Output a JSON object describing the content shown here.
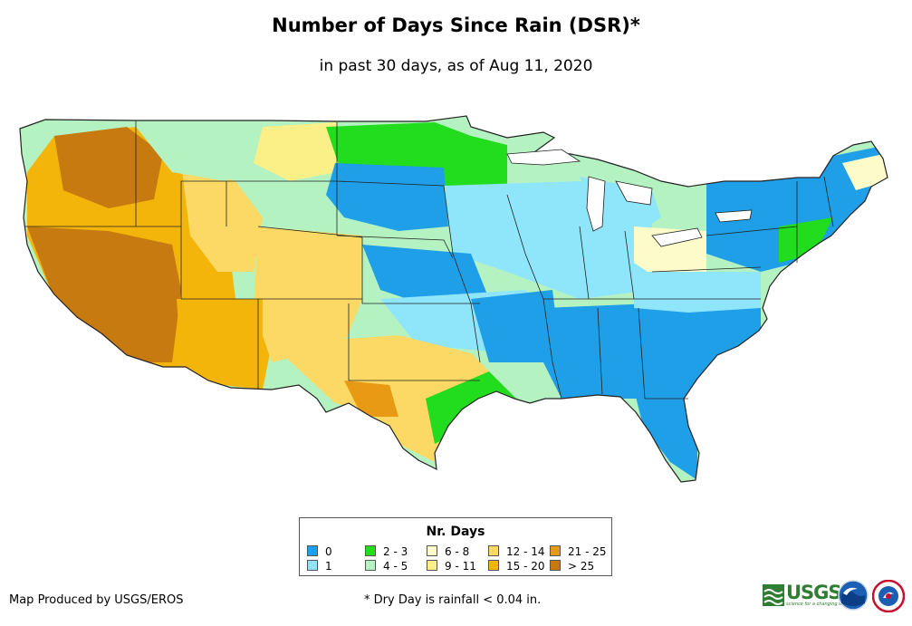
{
  "title": "Number of Days Since Rain (DSR)*",
  "subtitle": "in past 30 days, as of Aug 11, 2020",
  "legend": {
    "title": "Nr. Days",
    "items": [
      {
        "label": "0",
        "color": "#1f9fe8"
      },
      {
        "label": "1",
        "color": "#8fe6fb"
      },
      {
        "label": "2 - 3",
        "color": "#22dc1e"
      },
      {
        "label": "4 - 5",
        "color": "#b4f2c2"
      },
      {
        "label": "6 - 8",
        "color": "#fdfbca"
      },
      {
        "label": "9 - 11",
        "color": "#fbf088"
      },
      {
        "label": "12 - 14",
        "color": "#fbd964"
      },
      {
        "label": "15 - 20",
        "color": "#f4b50a"
      },
      {
        "label": "21 - 25",
        "color": "#e89a14"
      },
      {
        "label": "> 25",
        "color": "#c67a10"
      }
    ]
  },
  "credit": "Map Produced by USGS/EROS",
  "footnote": "* Dry Day is rainfall < 0.04 in.",
  "logos": {
    "usgs_text": "USGS",
    "usgs_tagline": "science for a changing world",
    "noaa_icon": "noaa-logo",
    "nws_icon": "nws-logo"
  }
}
